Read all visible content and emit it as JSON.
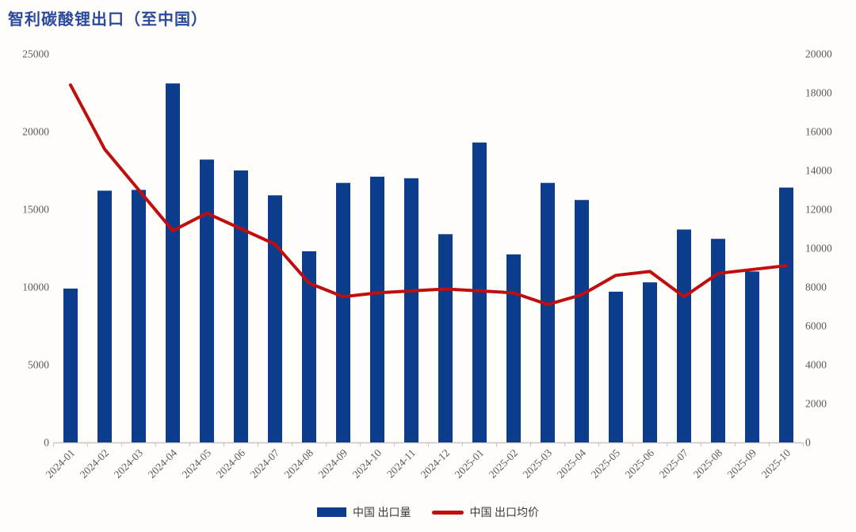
{
  "title": "智利碳酸锂出口（至中国）",
  "legend": {
    "bar_label": "中国 出口量",
    "line_label": "中国 出口均价"
  },
  "colors": {
    "title": "#2b4a9e",
    "bar": "#0c3d8c",
    "line": "#c00d0d",
    "axis_text": "#595959",
    "axis_line": "#c6c4c2",
    "background": "#fffefa",
    "legend_text": "#3a3a3a"
  },
  "chart_data": {
    "type": "bar",
    "subtype": "combo-bar-line",
    "title": "智利碳酸锂出口（至中国）",
    "grid": false,
    "legend_position": "bottom",
    "categories": [
      "2024-01",
      "2024-02",
      "2024-03",
      "2024-04",
      "2024-05",
      "2024-06",
      "2024-07",
      "2024-08",
      "2024-09",
      "2024-10",
      "2024-11",
      "2024-12",
      "2025-01",
      "2025-02",
      "2025-03",
      "2025-04",
      "2025-05",
      "2025-06",
      "2025-07",
      "2025-08",
      "2025-09",
      "2025-10"
    ],
    "series": [
      {
        "name": "中国 出口量",
        "type": "bar",
        "axis": "left",
        "color": "#0c3d8c",
        "values": [
          9900,
          16200,
          16250,
          23100,
          18200,
          17500,
          15900,
          12300,
          16700,
          17100,
          17000,
          13400,
          19300,
          12100,
          16700,
          15600,
          9700,
          10300,
          13700,
          13100,
          11000,
          16400
        ]
      },
      {
        "name": "中国 出口均价",
        "type": "line",
        "axis": "right",
        "color": "#c00d0d",
        "values": [
          18400,
          15100,
          13000,
          10900,
          11800,
          11000,
          10200,
          8200,
          7500,
          7700,
          7800,
          7900,
          7800,
          7700,
          7100,
          7600,
          8600,
          8800,
          7500,
          8700,
          8900,
          9100
        ]
      }
    ],
    "left_axis": {
      "min": 0,
      "max": 25000,
      "step": 5000,
      "ticks": [
        0,
        5000,
        10000,
        15000,
        20000,
        25000
      ]
    },
    "right_axis": {
      "min": 0,
      "max": 20000,
      "step": 2000,
      "ticks": [
        0,
        2000,
        4000,
        6000,
        8000,
        10000,
        12000,
        14000,
        16000,
        18000,
        20000
      ]
    }
  }
}
